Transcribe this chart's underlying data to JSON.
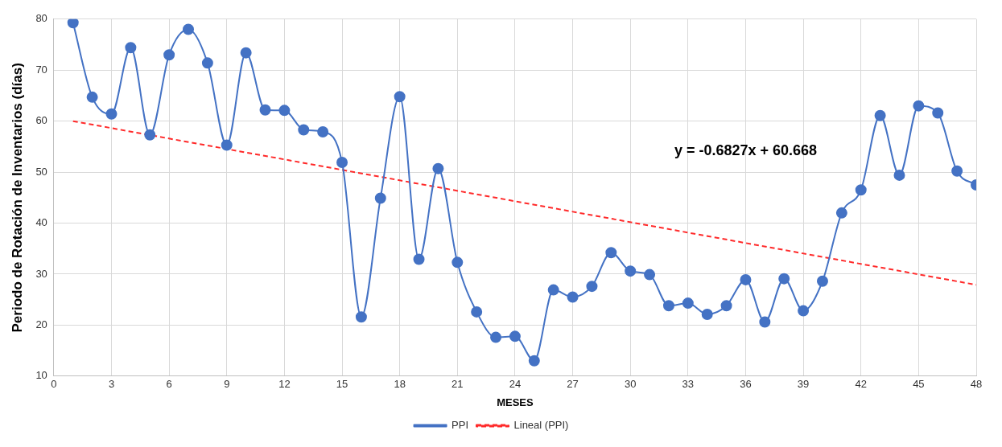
{
  "chart_data": {
    "type": "line",
    "xlabel": "MESES",
    "ylabel": "Periodo de Rotación de Inventarios (días)",
    "xlim": [
      0,
      48
    ],
    "xticks": [
      0,
      3,
      6,
      9,
      12,
      15,
      18,
      21,
      24,
      27,
      30,
      33,
      36,
      39,
      42,
      45,
      48
    ],
    "ylim": [
      10,
      80
    ],
    "yticks": [
      10,
      20,
      30,
      40,
      50,
      60,
      70,
      80
    ],
    "grid": true,
    "legend": "bottom",
    "x": [
      1,
      2,
      3,
      4,
      5,
      6,
      7,
      8,
      9,
      10,
      11,
      12,
      13,
      14,
      15,
      16,
      17,
      18,
      19,
      20,
      21,
      22,
      23,
      24,
      25,
      26,
      27,
      28,
      29,
      30,
      31,
      32,
      33,
      34,
      35,
      36,
      37,
      38,
      39,
      40,
      41,
      42,
      43,
      44,
      45,
      46,
      47,
      48
    ],
    "series": [
      {
        "name": "PPI",
        "color": "#4472c4",
        "marker": "circle",
        "line_style": "solid",
        "values": [
          79.3,
          64.7,
          61.4,
          74.4,
          57.3,
          73,
          78,
          71.4,
          55.3,
          73.4,
          62.2,
          62.1,
          58.3,
          57.9,
          51.9,
          21.6,
          44.9,
          64.8,
          32.9,
          50.7,
          32.3,
          22.6,
          17.6,
          17.8,
          13,
          26.9,
          25.5,
          27.6,
          34.2,
          30.6,
          29.9,
          23.8,
          24.3,
          22.1,
          23.8,
          28.9,
          20.6,
          29.1,
          22.8,
          28.6,
          42,
          46.5,
          61.1,
          49.4,
          63,
          61.6,
          50.2,
          47.5
        ]
      },
      {
        "name": "Lineal (PPI)",
        "color": "#ff2a2a",
        "marker": "none",
        "line_style": "dashed",
        "x": [
          1,
          48
        ],
        "values": [
          60,
          27.9
        ]
      }
    ],
    "annotations": [
      "y = -0.6827x + 60.668"
    ]
  }
}
